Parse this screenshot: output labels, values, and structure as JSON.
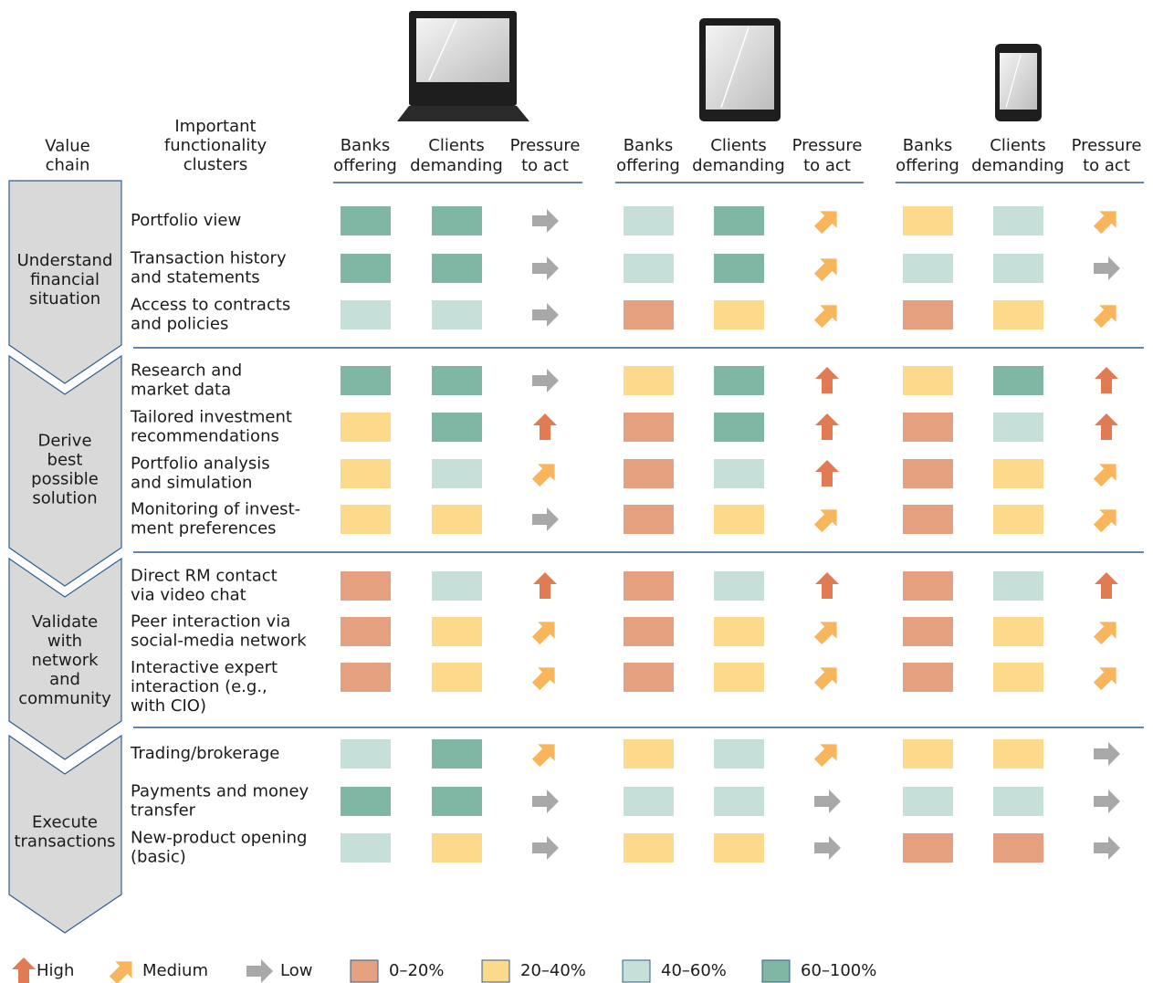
{
  "header": {
    "value_chain": [
      "Value",
      "chain"
    ],
    "clusters": [
      "Important",
      "functionality",
      "clusters"
    ],
    "columns": [
      [
        "Banks",
        "offering"
      ],
      [
        "Clients",
        "demanding"
      ],
      [
        "Pressure",
        "to act"
      ]
    ]
  },
  "legend": {
    "pressure": [
      {
        "label": "High",
        "color": "#e07b53"
      },
      {
        "label": "Medium",
        "color": "#f8b55c"
      },
      {
        "label": "Low",
        "color": "#a8a8a8"
      }
    ],
    "coverage": [
      {
        "label": "0–20%",
        "color": "#e5a17f"
      },
      {
        "label": "20–40%",
        "color": "#fdd98b"
      },
      {
        "label": "40–60%",
        "color": "#c6dfd8"
      },
      {
        "label": "60–100%",
        "color": "#80b6a4"
      }
    ]
  },
  "stages": [
    {
      "label": [
        "Understand",
        "financial",
        "situation"
      ],
      "rows": [
        {
          "label": [
            "Portfolio view"
          ],
          "cells": [
            [
              3,
              3,
              2
            ],
            [
              2,
              3,
              1
            ],
            [
              1,
              2,
              1
            ]
          ]
        },
        {
          "label": [
            "Transaction history",
            "and statements"
          ],
          "cells": [
            [
              3,
              3,
              2
            ],
            [
              2,
              3,
              1
            ],
            [
              2,
              2,
              2
            ]
          ]
        },
        {
          "label": [
            "Access to contracts",
            "and policies"
          ],
          "cells": [
            [
              2,
              2,
              2
            ],
            [
              0,
              1,
              1
            ],
            [
              0,
              1,
              1
            ]
          ]
        }
      ]
    },
    {
      "label": [
        "Derive",
        "best",
        "possible",
        "solution"
      ],
      "rows": [
        {
          "label": [
            "Research and",
            "market data"
          ],
          "cells": [
            [
              3,
              3,
              2
            ],
            [
              1,
              3,
              0
            ],
            [
              1,
              3,
              0
            ]
          ]
        },
        {
          "label": [
            "Tailored investment",
            "recommendations"
          ],
          "cells": [
            [
              1,
              3,
              0
            ],
            [
              0,
              3,
              0
            ],
            [
              0,
              2,
              0
            ]
          ]
        },
        {
          "label": [
            "Portfolio analysis",
            "and simulation"
          ],
          "cells": [
            [
              1,
              2,
              1
            ],
            [
              0,
              2,
              0
            ],
            [
              0,
              1,
              1
            ]
          ]
        },
        {
          "label": [
            "Monitoring of invest-",
            "ment preferences"
          ],
          "cells": [
            [
              1,
              1,
              2
            ],
            [
              0,
              1,
              1
            ],
            [
              0,
              1,
              1
            ]
          ]
        }
      ]
    },
    {
      "label": [
        "Validate",
        "with",
        "network",
        "and",
        "community"
      ],
      "rows": [
        {
          "label": [
            "Direct RM contact",
            "via video chat"
          ],
          "cells": [
            [
              0,
              2,
              0
            ],
            [
              0,
              2,
              0
            ],
            [
              0,
              2,
              0
            ]
          ]
        },
        {
          "label": [
            "Peer interaction via",
            "social-media network"
          ],
          "cells": [
            [
              0,
              1,
              1
            ],
            [
              0,
              1,
              1
            ],
            [
              0,
              1,
              1
            ]
          ]
        },
        {
          "label": [
            "Interactive expert",
            "interaction (e.g.,",
            "with CIO)"
          ],
          "cells": [
            [
              0,
              1,
              1
            ],
            [
              0,
              1,
              1
            ],
            [
              0,
              1,
              1
            ]
          ]
        }
      ]
    },
    {
      "label": [
        "Execute",
        "transactions"
      ],
      "rows": [
        {
          "label": [
            "Trading/brokerage"
          ],
          "cells": [
            [
              2,
              3,
              1
            ],
            [
              1,
              2,
              1
            ],
            [
              1,
              1,
              2
            ]
          ]
        },
        {
          "label": [
            "Payments and money",
            "transfer"
          ],
          "cells": [
            [
              3,
              3,
              2
            ],
            [
              2,
              2,
              2
            ],
            [
              2,
              2,
              2
            ]
          ]
        },
        {
          "label": [
            "New-product opening",
            "(basic)"
          ],
          "cells": [
            [
              2,
              1,
              2
            ],
            [
              1,
              1,
              2
            ],
            [
              0,
              0,
              2
            ]
          ]
        }
      ]
    }
  ]
}
